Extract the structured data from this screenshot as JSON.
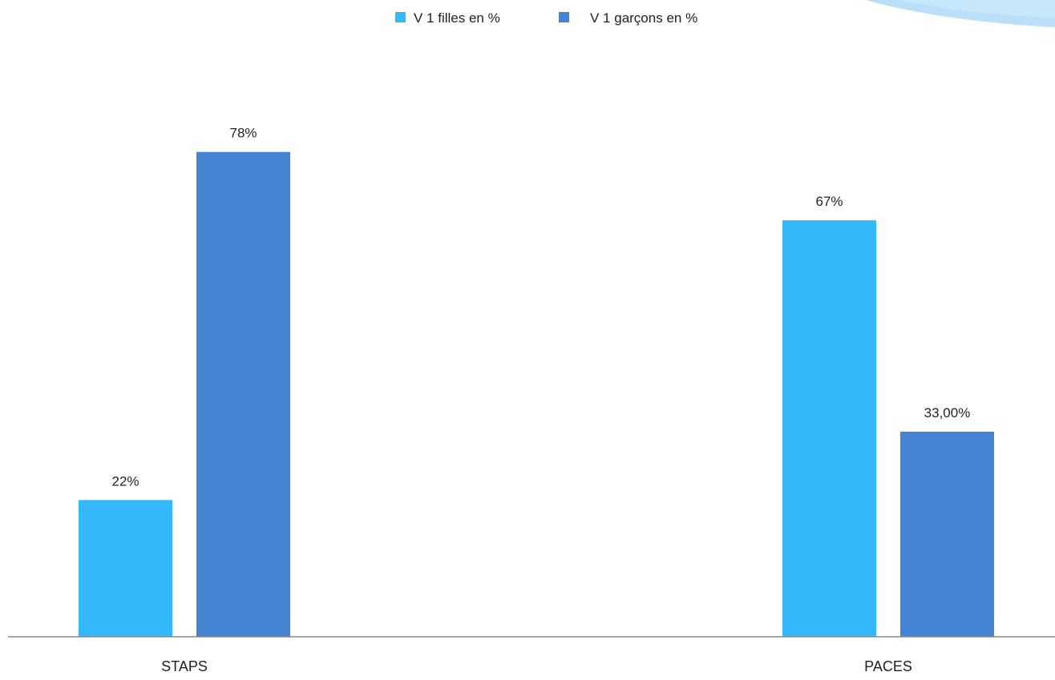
{
  "chart_data": {
    "type": "bar",
    "title": "",
    "xlabel": "",
    "ylabel": "",
    "categories": [
      "STAPS",
      "PACES"
    ],
    "series": [
      {
        "name": "V 1 filles en %",
        "values": [
          22,
          67
        ],
        "labels": [
          "22%",
          "67%"
        ],
        "color": "#33B8FA"
      },
      {
        "name": "V 1 garçons en %",
        "values": [
          78,
          33
        ],
        "labels": [
          "78%",
          "33,00%"
        ],
        "color": "#4484D3"
      }
    ],
    "ylim": [
      0,
      100
    ],
    "grid": false,
    "legend_position": "top-center",
    "axis_color": "#888888",
    "decoration_color": "#A9D8F8"
  }
}
